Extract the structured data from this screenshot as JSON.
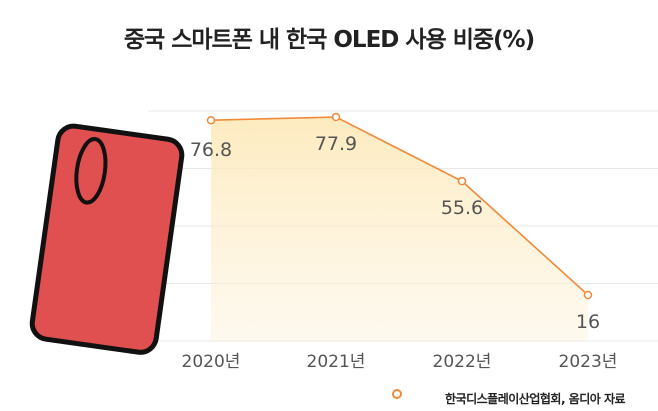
{
  "chart_data": {
    "type": "area",
    "title": "중국 스마트폰 내 한국 OLED 사용 비중(%)",
    "categories": [
      "2020년",
      "2021년",
      "2022년",
      "2023년"
    ],
    "values": [
      76.8,
      77.9,
      55.6,
      16
    ],
    "data_labels": [
      "76.8",
      "77.9",
      "55.6",
      "16"
    ],
    "ylim": [
      0,
      80
    ],
    "grid": true,
    "legend": {
      "label": "한국디스플레이산업협회, 옴디아 자료",
      "placement": "bottom-right"
    },
    "colors": {
      "line": "#f08a3a",
      "fill": "#fde9b8",
      "phone": "#e05050"
    }
  }
}
